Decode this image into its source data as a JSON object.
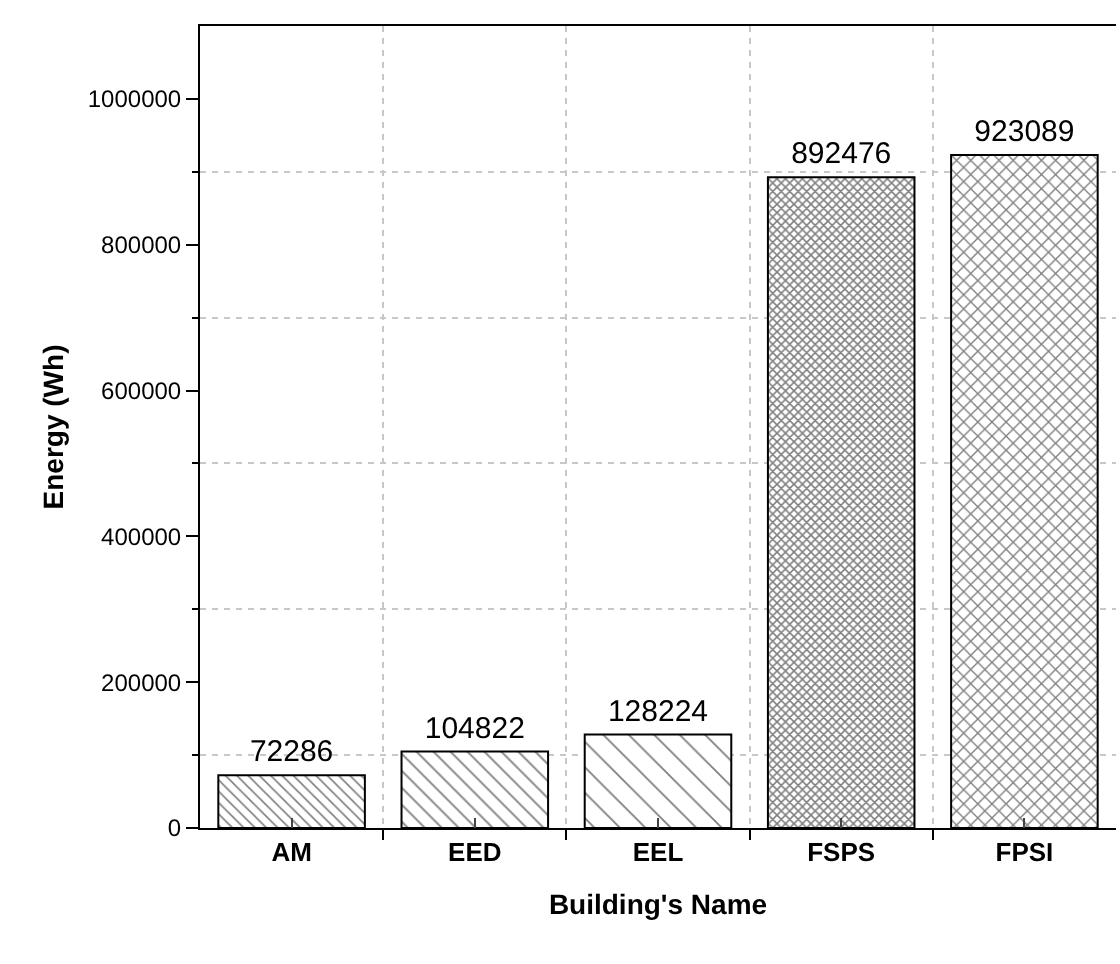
{
  "chart_data": {
    "type": "bar",
    "xlabel": "Building's Name",
    "ylabel": "Energy (Wh)",
    "categories": [
      "AM",
      "EED",
      "EEL",
      "FSPS",
      "FPSI"
    ],
    "values": [
      72286,
      104822,
      128224,
      892476,
      923089
    ],
    "colors": [
      "#000000",
      "#000000",
      "#000000",
      "#000000",
      "#000000"
    ],
    "ylim": [
      0,
      1100000
    ],
    "yticks": [
      0,
      200000,
      400000,
      600000,
      800000,
      1000000
    ],
    "grid": true,
    "data_labels": true
  }
}
